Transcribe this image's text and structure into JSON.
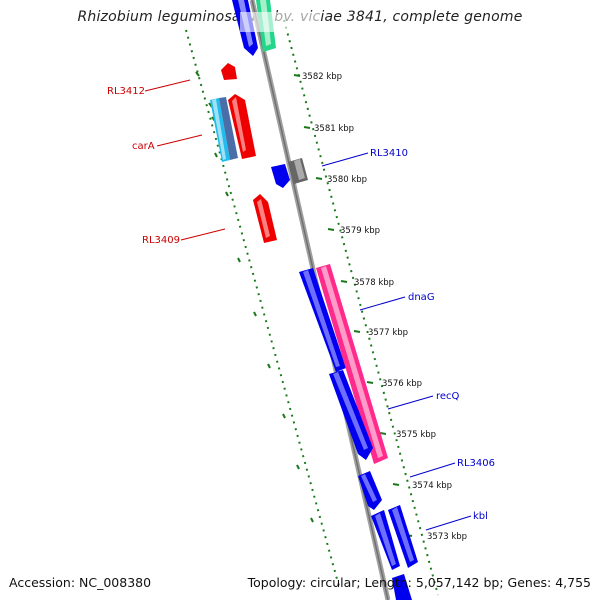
{
  "title": "Rhizobium leguminosarum bv. viciae 3841, complete genome",
  "footer": {
    "accession": "Accession: NC_008380",
    "topology": "Topology: circular; Length: 5,057,142 bp; Genes: 4,755"
  },
  "colors": {
    "backbone": "#909090",
    "tick": "#1a7a1a",
    "reverse_label": "#cc0000",
    "forward_label": "#0000cc",
    "forward_gene": "#0000ee",
    "reverse_gene": "#ee0000",
    "rrna_like": "#ff2a8c",
    "cyan_gene": "#22bbee",
    "grey_gene": "#666666",
    "green_gene": "#22d68a"
  },
  "ticks": [
    {
      "kbp": 3582,
      "label": "3582 kbp"
    },
    {
      "kbp": 3581,
      "label": "3581 kbp"
    },
    {
      "kbp": 3580,
      "label": "3580 kbp"
    },
    {
      "kbp": 3579,
      "label": "3579 kbp"
    },
    {
      "kbp": 3578,
      "label": "3578 kbp"
    },
    {
      "kbp": 3577,
      "label": "3577 kbp"
    },
    {
      "kbp": 3576,
      "label": "3576 kbp"
    },
    {
      "kbp": 3575,
      "label": "3575 kbp"
    },
    {
      "kbp": 3574,
      "label": "3574 kbp"
    },
    {
      "kbp": 3573,
      "label": "3573 kbp"
    }
  ],
  "gene_labels": {
    "RL3412": "RL3412",
    "carA": "carA",
    "RL3409": "RL3409",
    "RL3410": "RL3410",
    "dnaG": "dnaG",
    "recQ": "recQ",
    "RL3406": "RL3406",
    "kbl": "kbl"
  }
}
